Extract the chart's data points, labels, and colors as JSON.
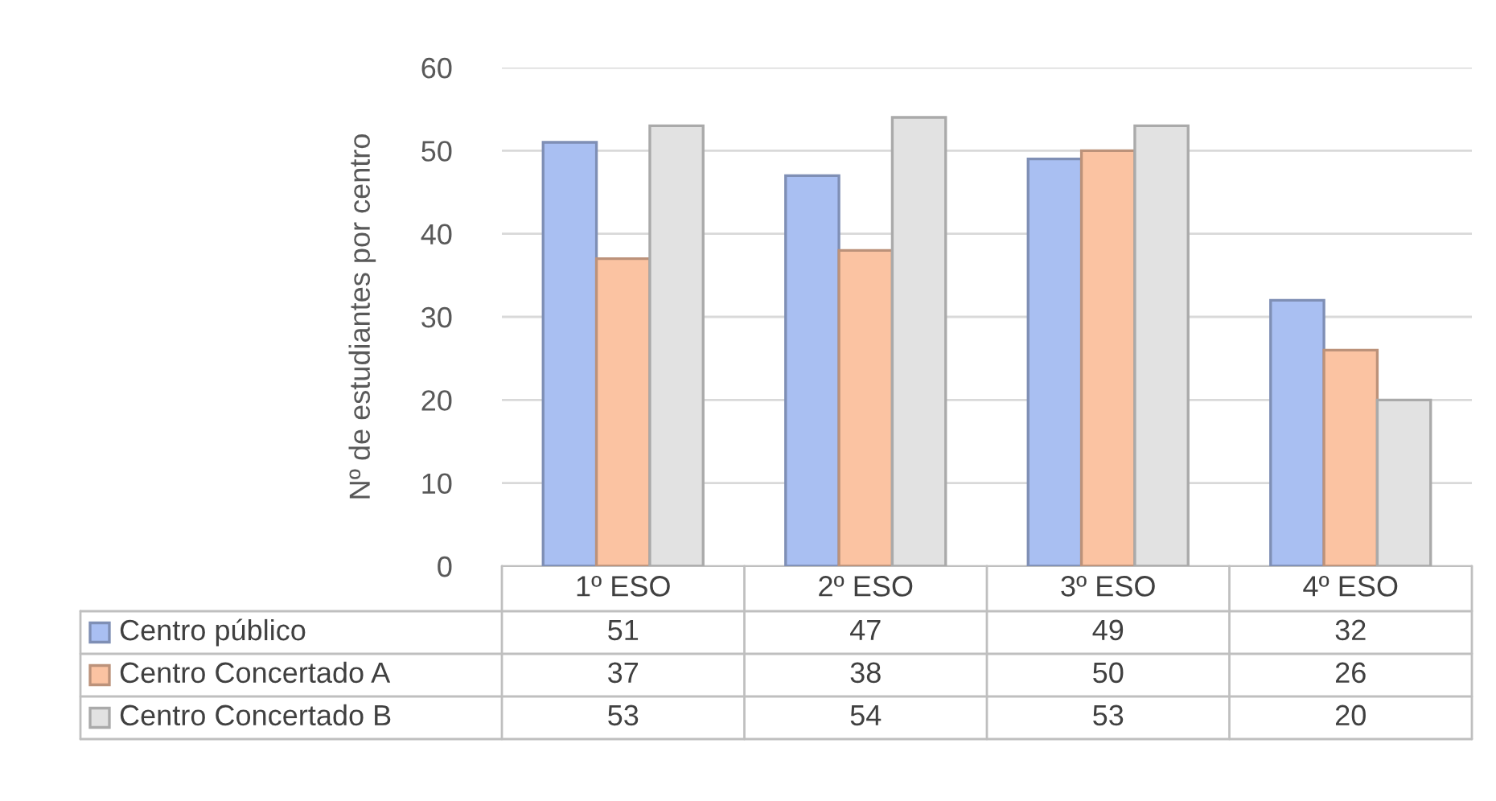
{
  "chart_data": {
    "type": "bar",
    "ylabel": "Nº de estudiantes por centro",
    "categories": [
      "1º ESO",
      "2º ESO",
      "3º ESO",
      "4º ESO"
    ],
    "series": [
      {
        "name": "Centro público",
        "color": "#a9bff2",
        "values": [
          51,
          47,
          49,
          32
        ]
      },
      {
        "name": "Centro Concertado A",
        "color": "#fbc3a2",
        "values": [
          37,
          38,
          50,
          26
        ]
      },
      {
        "name": "Centro Concertado B",
        "color": "#e2e2e2",
        "values": [
          53,
          54,
          53,
          20
        ]
      }
    ],
    "ylim": [
      0,
      60
    ],
    "yticks": [
      0,
      10,
      20,
      30,
      40,
      50,
      60
    ],
    "grid": "y",
    "legend": "bottom",
    "data_labels": true
  }
}
